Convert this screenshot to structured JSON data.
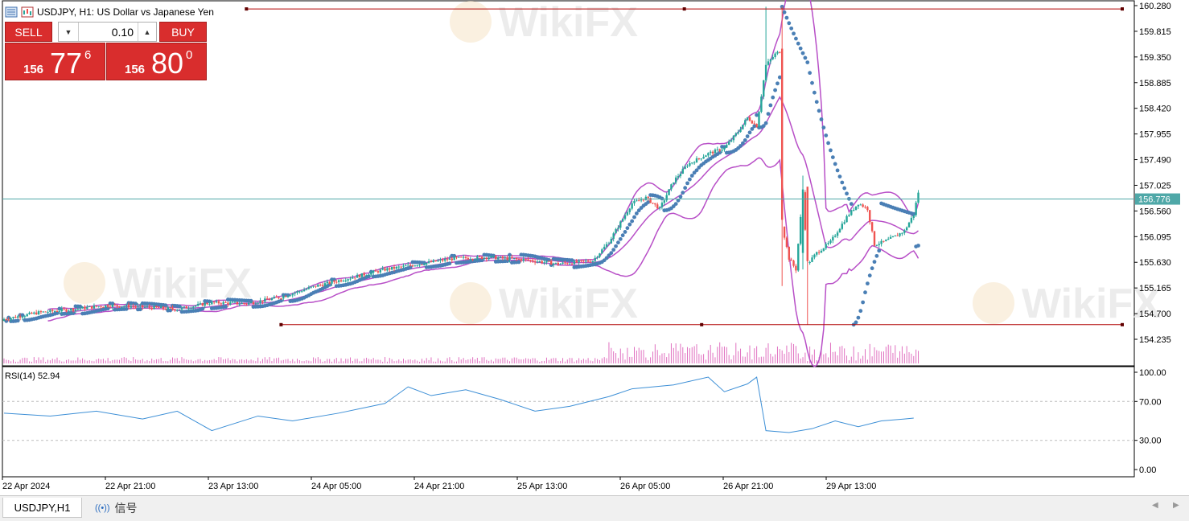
{
  "header": {
    "title": "USDJPY, H1:  US Dollar vs Japanese Yen"
  },
  "trade_panel": {
    "sell_label": "SELL",
    "buy_label": "BUY",
    "lot_value": "0.10",
    "sell_price": {
      "prefix": "156",
      "big": "77",
      "sup": "6"
    },
    "buy_price": {
      "prefix": "156",
      "big": "80",
      "sup": "0"
    }
  },
  "watermark": "WikiFX",
  "rsi_label": "RSI(14) 52.94",
  "current_price_label": "156.776",
  "tabs": {
    "active": "USDJPY,H1",
    "signals": "信号"
  },
  "colors": {
    "bull": "#26a69a",
    "bear": "#ef5350",
    "bands": "#b84fc7",
    "sar": "#4a7fb5",
    "rsi": "#3d8fd6",
    "level": "#b00000",
    "price_line": "#4fa8a8"
  },
  "chart_data": [
    {
      "type": "candlestick",
      "symbol": "USDJPY",
      "timeframe": "H1",
      "y_ticks": [
        "160.280",
        "159.815",
        "159.350",
        "158.885",
        "158.420",
        "157.955",
        "157.490",
        "157.025",
        "156.560",
        "156.095",
        "155.630",
        "155.165",
        "154.700",
        "154.235"
      ],
      "x_ticks": [
        "22 Apr 2024",
        "22 Apr 21:00",
        "23 Apr 13:00",
        "24 Apr 05:00",
        "24 Apr 21:00",
        "25 Apr 13:00",
        "26 Apr 05:00",
        "26 Apr 21:00",
        "29 Apr 13:00"
      ],
      "ylim": [
        154.0,
        160.3
      ],
      "current_price": 156.776,
      "horizontal_levels": [
        160.22,
        154.5
      ],
      "close_path": [
        [
          0,
          154.6
        ],
        [
          15,
          154.72
        ],
        [
          30,
          154.78
        ],
        [
          45,
          154.85
        ],
        [
          60,
          154.82
        ],
        [
          75,
          154.78
        ],
        [
          90,
          154.9
        ],
        [
          105,
          154.88
        ],
        [
          120,
          155.0
        ],
        [
          135,
          155.2
        ],
        [
          150,
          155.35
        ],
        [
          165,
          155.5
        ],
        [
          180,
          155.6
        ],
        [
          195,
          155.7
        ],
        [
          210,
          155.72
        ],
        [
          225,
          155.68
        ],
        [
          240,
          155.6
        ],
        [
          255,
          155.66
        ],
        [
          262,
          156.0
        ],
        [
          272,
          156.7
        ],
        [
          278,
          156.8
        ],
        [
          284,
          156.6
        ],
        [
          290,
          157.1
        ],
        [
          296,
          157.4
        ],
        [
          305,
          157.6
        ],
        [
          312,
          157.7
        ],
        [
          318,
          158.0
        ],
        [
          322,
          158.25
        ],
        [
          326,
          158.1
        ],
        [
          330,
          159.2
        ],
        [
          334,
          159.4
        ],
        [
          336,
          159.45
        ],
        [
          337,
          156.3
        ],
        [
          340,
          155.7
        ],
        [
          343,
          155.5
        ],
        [
          346,
          156.9
        ],
        [
          348,
          155.6
        ],
        [
          352,
          155.8
        ],
        [
          358,
          156.0
        ],
        [
          365,
          156.45
        ],
        [
          370,
          156.7
        ],
        [
          374,
          156.6
        ],
        [
          377,
          155.95
        ],
        [
          381,
          156.0
        ],
        [
          386,
          156.1
        ],
        [
          390,
          156.2
        ],
        [
          394,
          156.5
        ],
        [
          396,
          156.9
        ]
      ]
    },
    {
      "type": "line",
      "name": "RSI(14)",
      "ylim": [
        0,
        100
      ],
      "y_ticks": [
        "100.00",
        "70.00",
        "30.00",
        "0.00"
      ],
      "reference_levels": [
        70,
        30
      ],
      "points": [
        [
          0,
          58
        ],
        [
          20,
          55
        ],
        [
          40,
          60
        ],
        [
          60,
          52
        ],
        [
          75,
          60
        ],
        [
          90,
          40
        ],
        [
          110,
          55
        ],
        [
          125,
          50
        ],
        [
          145,
          58
        ],
        [
          165,
          68
        ],
        [
          175,
          85
        ],
        [
          185,
          76
        ],
        [
          200,
          82
        ],
        [
          215,
          72
        ],
        [
          230,
          60
        ],
        [
          245,
          65
        ],
        [
          262,
          75
        ],
        [
          272,
          83
        ],
        [
          290,
          87
        ],
        [
          305,
          95
        ],
        [
          312,
          80
        ],
        [
          322,
          88
        ],
        [
          326,
          95
        ],
        [
          330,
          40
        ],
        [
          340,
          38
        ],
        [
          350,
          42
        ],
        [
          360,
          50
        ],
        [
          370,
          44
        ],
        [
          380,
          50
        ],
        [
          390,
          52
        ],
        [
          394,
          52.94
        ]
      ]
    }
  ]
}
